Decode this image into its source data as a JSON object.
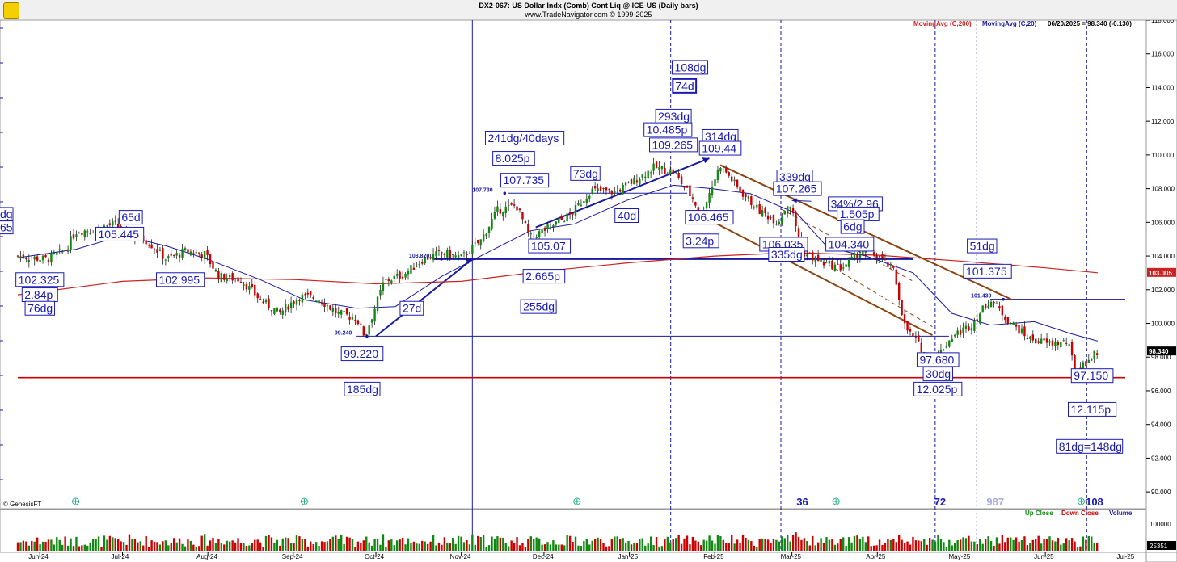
{
  "header": {
    "title": "DX2-067:  US Dollar Indx (Comb) Cont Liq @ ICE-US  (Daily bars)",
    "subtitle": "www.TradeNavigator.com © 1999-2025",
    "ma200": "MovingAvg (C,200)",
    "ma20": "MovingAvg (C,20)",
    "last_quote": "06/20/2025 = 98.340 (-0.130)"
  },
  "footer": {
    "provider": "© GenesisFT",
    "up_close": "Up Close",
    "down_close": "Down Close",
    "volume": "Volume"
  },
  "colors": {
    "up": "#118811",
    "down": "#cc0000",
    "ma200": "#cc2222",
    "ma20": "#1a1aa0",
    "annotation": "#1a1ab4",
    "trendline": "#8b4513",
    "support": "#cc0000"
  },
  "chart_data": {
    "type": "candlestick",
    "y_range": [
      89,
      118
    ],
    "y_ticks": [
      "90.000",
      "92.000",
      "94.000",
      "96.000",
      "98.000",
      "100.000",
      "102.000",
      "104.000",
      "106.000",
      "108.000",
      "110.000",
      "112.000",
      "114.000",
      "116.000",
      "118.000"
    ],
    "x_ticks": [
      "Jun-24",
      "Jul-24",
      "Aug-24",
      "Sep-24",
      "Oct-24",
      "Nov-24",
      "Dec-24",
      "Jan-25",
      "Feb-25",
      "Mar-25",
      "Apr-25",
      "May-25",
      "Jun-25",
      "Jul-25"
    ],
    "axis_markers": [
      {
        "label": "103.005",
        "kind": "ma200"
      },
      {
        "label": "98.340",
        "kind": "last"
      }
    ],
    "volume_labels": [
      "100000",
      "25351"
    ],
    "cycle_counts": [
      "36",
      "72",
      "987",
      "108"
    ],
    "close_path": [
      [
        "2024-05-24",
        104.0
      ],
      [
        "2024-06-03",
        103.8
      ],
      [
        "2024-06-10",
        104.3
      ],
      [
        "2024-06-14",
        105.445
      ],
      [
        "2024-06-21",
        105.6
      ],
      [
        "2024-06-28",
        105.9
      ],
      [
        "2024-07-03",
        105.3
      ],
      [
        "2024-07-10",
        104.9
      ],
      [
        "2024-07-17",
        103.8
      ],
      [
        "2024-07-24",
        104.3
      ],
      [
        "2024-07-31",
        104.1
      ],
      [
        "2024-08-05",
        102.8
      ],
      [
        "2024-08-13",
        102.6
      ],
      [
        "2024-08-20",
        101.4
      ],
      [
        "2024-08-27",
        100.6
      ],
      [
        "2024-09-03",
        101.6
      ],
      [
        "2024-09-10",
        101.5
      ],
      [
        "2024-09-17",
        100.6
      ],
      [
        "2024-09-24",
        100.3
      ],
      [
        "2024-09-27",
        99.22
      ],
      [
        "2024-10-04",
        102.5
      ],
      [
        "2024-10-11",
        102.9
      ],
      [
        "2024-10-18",
        103.8
      ],
      [
        "2024-10-25",
        104.2
      ],
      [
        "2024-11-01",
        103.9
      ],
      [
        "2024-11-08",
        104.9
      ],
      [
        "2024-11-14",
        106.7
      ],
      [
        "2024-11-21",
        107.0
      ],
      [
        "2024-11-26",
        105.07
      ],
      [
        "2024-12-04",
        105.8
      ],
      [
        "2024-12-11",
        106.5
      ],
      [
        "2024-12-18",
        107.9
      ],
      [
        "2024-12-27",
        107.8
      ],
      [
        "2025-01-03",
        108.5
      ],
      [
        "2025-01-10",
        109.265
      ],
      [
        "2025-01-17",
        109.0
      ],
      [
        "2025-01-24",
        107.4
      ],
      [
        "2025-01-27",
        106.465
      ],
      [
        "2025-02-03",
        109.44
      ],
      [
        "2025-02-10",
        107.9
      ],
      [
        "2025-02-17",
        106.7
      ],
      [
        "2025-02-24",
        106.035
      ],
      [
        "2025-02-28",
        107.265
      ],
      [
        "2025-03-05",
        104.2
      ],
      [
        "2025-03-12",
        103.6
      ],
      [
        "2025-03-19",
        103.3
      ],
      [
        "2025-03-27",
        104.34
      ],
      [
        "2025-04-02",
        103.9
      ],
      [
        "2025-04-07",
        103.1
      ],
      [
        "2025-04-11",
        99.8
      ],
      [
        "2025-04-21",
        97.68
      ],
      [
        "2025-04-28",
        99.2
      ],
      [
        "2025-05-05",
        99.9
      ],
      [
        "2025-05-12",
        101.43
      ],
      [
        "2025-05-19",
        100.1
      ],
      [
        "2025-05-26",
        99.1
      ],
      [
        "2025-06-02",
        98.8
      ],
      [
        "2025-06-09",
        98.9
      ],
      [
        "2025-06-12",
        97.15
      ],
      [
        "2025-06-20",
        98.34
      ]
    ],
    "ma200_path": [
      [
        "2024-05-24",
        101.7
      ],
      [
        "2024-07-01",
        102.5
      ],
      [
        "2024-08-01",
        102.7
      ],
      [
        "2024-09-02",
        102.6
      ],
      [
        "2024-10-01",
        102.35
      ],
      [
        "2024-11-01",
        102.5
      ],
      [
        "2024-12-01",
        103.1
      ],
      [
        "2025-01-01",
        103.6
      ],
      [
        "2025-02-01",
        104.0
      ],
      [
        "2025-03-01",
        104.2
      ],
      [
        "2025-04-01",
        104.05
      ],
      [
        "2025-05-01",
        103.7
      ],
      [
        "2025-06-01",
        103.3
      ],
      [
        "2025-06-20",
        103.005
      ]
    ],
    "ma20_path": [
      [
        "2024-05-24",
        103.9
      ],
      [
        "2024-06-14",
        104.4
      ],
      [
        "2024-07-01",
        105.2
      ],
      [
        "2024-07-17",
        104.6
      ],
      [
        "2024-08-01",
        103.8
      ],
      [
        "2024-08-20",
        102.6
      ],
      [
        "2024-09-05",
        101.4
      ],
      [
        "2024-09-24",
        100.9
      ],
      [
        "2024-10-08",
        101.0
      ],
      [
        "2024-10-25",
        102.8
      ],
      [
        "2024-11-08",
        104.0
      ],
      [
        "2024-11-26",
        105.5
      ],
      [
        "2024-12-12",
        105.9
      ],
      [
        "2024-12-31",
        107.3
      ],
      [
        "2025-01-17",
        108.2
      ],
      [
        "2025-01-31",
        108.0
      ],
      [
        "2025-02-14",
        107.7
      ],
      [
        "2025-03-03",
        106.5
      ],
      [
        "2025-03-14",
        104.5
      ],
      [
        "2025-03-28",
        104.0
      ],
      [
        "2025-04-14",
        103.0
      ],
      [
        "2025-04-28",
        100.6
      ],
      [
        "2025-05-12",
        99.9
      ],
      [
        "2025-05-28",
        100.1
      ],
      [
        "2025-06-10",
        99.4
      ],
      [
        "2025-06-20",
        98.95
      ]
    ],
    "lines": [
      {
        "kind": "hline",
        "y": 103.82,
        "x1": "2024-10-22",
        "x2": "2025-04-14",
        "color": "ma20",
        "width": 2
      },
      {
        "kind": "hline",
        "y": 107.73,
        "x1": "2024-11-18",
        "x2": "2025-01-22",
        "color": "ma20",
        "width": 1
      },
      {
        "kind": "hline",
        "y": 99.24,
        "x1": "2024-09-24",
        "x2": "2025-04-27",
        "color": "ma20",
        "width": 1
      },
      {
        "kind": "hline",
        "y": 101.43,
        "x1": "2025-05-12",
        "x2": "2025-06-30",
        "color": "ma20",
        "width": 1
      },
      {
        "kind": "hline",
        "y": 96.78,
        "x1": "2024-05-24",
        "x2": "2025-06-30",
        "color": "support",
        "width": 1.6
      },
      {
        "kind": "seg",
        "x1": "2024-10-01",
        "y1": 99.24,
        "x2": "2024-11-05",
        "y2": 103.82,
        "color": "ma20",
        "width": 2
      },
      {
        "kind": "seg",
        "x1": "2024-11-28",
        "y1": 105.7,
        "x2": "2025-01-30",
        "y2": 109.8,
        "color": "ma20",
        "width": 2
      },
      {
        "kind": "seg",
        "x1": "2025-02-03",
        "y1": 109.4,
        "x2": "2025-05-20",
        "y2": 101.4,
        "color": "trendline",
        "width": 2
      },
      {
        "kind": "seg",
        "x1": "2025-01-27",
        "y1": 106.4,
        "x2": "2025-04-21",
        "y2": 99.3,
        "color": "trendline",
        "width": 2
      },
      {
        "kind": "seg",
        "x1": "2025-02-25",
        "y1": 106.8,
        "x2": "2025-04-14",
        "y2": 102.5,
        "color": "trendline",
        "width": 1,
        "dash": true
      },
      {
        "kind": "seg",
        "x1": "2025-03-10",
        "y1": 103.9,
        "x2": "2025-04-21",
        "y2": 99.8,
        "color": "trendline",
        "width": 1,
        "dash": true
      },
      {
        "kind": "seg",
        "x1": "2025-03-01",
        "y1": 107.3,
        "x2": "2025-03-08",
        "y2": 107.25,
        "color": "ma20",
        "width": 1
      }
    ],
    "verticals": [
      {
        "date": "2024-11-05",
        "style": "solid"
      },
      {
        "date": "2025-01-16",
        "style": "dash"
      },
      {
        "date": "2025-02-25",
        "style": "dash"
      },
      {
        "date": "2025-04-22",
        "style": "dash"
      },
      {
        "date": "2025-05-07",
        "style": "dot"
      },
      {
        "date": "2025-06-16",
        "style": "dash"
      }
    ],
    "small_labels": [
      {
        "text": "103.820",
        "date": "2024-10-13",
        "y": 103.82
      },
      {
        "text": "107.730",
        "date": "2024-11-05",
        "y": 107.73
      },
      {
        "text": "99.240",
        "date": "2024-09-16",
        "y": 99.24
      },
      {
        "text": "101.430",
        "date": "2025-05-05",
        "y": 101.43
      }
    ],
    "annotations": [
      {
        "text": "65d",
        "date": "2024-07-04",
        "y": 106.3
      },
      {
        "text": "105.445",
        "date": "2024-06-30",
        "y": 105.3
      },
      {
        "text": "102.325",
        "date": "2024-06-01",
        "y": 102.6
      },
      {
        "text": "2.84p",
        "date": "2024-06-01",
        "y": 101.7
      },
      {
        "text": "76dg",
        "date": "2024-06-01",
        "y": 100.9
      },
      {
        "text": "102.995",
        "date": "2024-07-22",
        "y": 102.6
      },
      {
        "text": "27d",
        "date": "2024-10-14",
        "y": 100.9
      },
      {
        "text": "99.220",
        "date": "2024-09-26",
        "y": 98.2
      },
      {
        "text": "185dg",
        "date": "2024-09-26",
        "y": 96.1
      },
      {
        "text": "241dg/40days",
        "date": "2024-11-24",
        "y": 111.0
      },
      {
        "text": "8.025p",
        "date": "2024-11-20",
        "y": 109.8
      },
      {
        "text": "107.735",
        "date": "2024-11-24",
        "y": 108.5
      },
      {
        "text": "73dg",
        "date": "2024-12-16",
        "y": 108.9
      },
      {
        "text": "105.07",
        "date": "2024-12-03",
        "y": 104.6
      },
      {
        "text": "2.665p",
        "date": "2024-12-01",
        "y": 102.8
      },
      {
        "text": "255dg",
        "date": "2024-11-29",
        "y": 101.0
      },
      {
        "text": "108dg",
        "date": "2025-01-23",
        "y": 115.2
      },
      {
        "text": "74d",
        "date": "2025-01-21",
        "y": 114.1,
        "bold": true
      },
      {
        "text": "293dg",
        "date": "2025-01-17",
        "y": 112.3
      },
      {
        "text": "10.485p",
        "date": "2025-01-15",
        "y": 111.5
      },
      {
        "text": "109.265",
        "date": "2025-01-17",
        "y": 110.6
      },
      {
        "text": "314dg",
        "date": "2025-02-03",
        "y": 111.1
      },
      {
        "text": "109.44",
        "date": "2025-02-03",
        "y": 110.4
      },
      {
        "text": "40d",
        "date": "2024-12-31",
        "y": 106.4
      },
      {
        "text": "106.465",
        "date": "2025-01-30",
        "y": 106.3
      },
      {
        "text": "3.24p",
        "date": "2025-01-27",
        "y": 104.9
      },
      {
        "text": "339dg",
        "date": "2025-03-02",
        "y": 108.7
      },
      {
        "text": "107.265",
        "date": "2025-03-03",
        "y": 108.0
      },
      {
        "text": "34%/2.96",
        "date": "2025-03-24",
        "y": 107.1
      },
      {
        "text": "1.505p",
        "date": "2025-03-25",
        "y": 106.5
      },
      {
        "text": "6dg",
        "date": "2025-03-23",
        "y": 105.75
      },
      {
        "text": "106.035",
        "date": "2025-02-26",
        "y": 104.7
      },
      {
        "text": "335dg",
        "date": "2025-02-27",
        "y": 104.1
      },
      {
        "text": "104.340",
        "date": "2025-03-22",
        "y": 104.7
      },
      {
        "text": "51dg",
        "date": "2025-05-09",
        "y": 104.6
      },
      {
        "text": "101.375",
        "date": "2025-05-11",
        "y": 103.1
      },
      {
        "text": "97.680",
        "date": "2025-04-23",
        "y": 97.85
      },
      {
        "text": "30dg",
        "date": "2025-04-23",
        "y": 97.0
      },
      {
        "text": "12.025p",
        "date": "2025-04-23",
        "y": 96.1
      },
      {
        "text": "97.150",
        "date": "2025-06-18",
        "y": 96.9
      },
      {
        "text": "12.115p",
        "date": "2025-06-18",
        "y": 94.9
      },
      {
        "text": "81dg=148dg",
        "date": "2025-06-17",
        "y": 92.7
      }
    ]
  }
}
